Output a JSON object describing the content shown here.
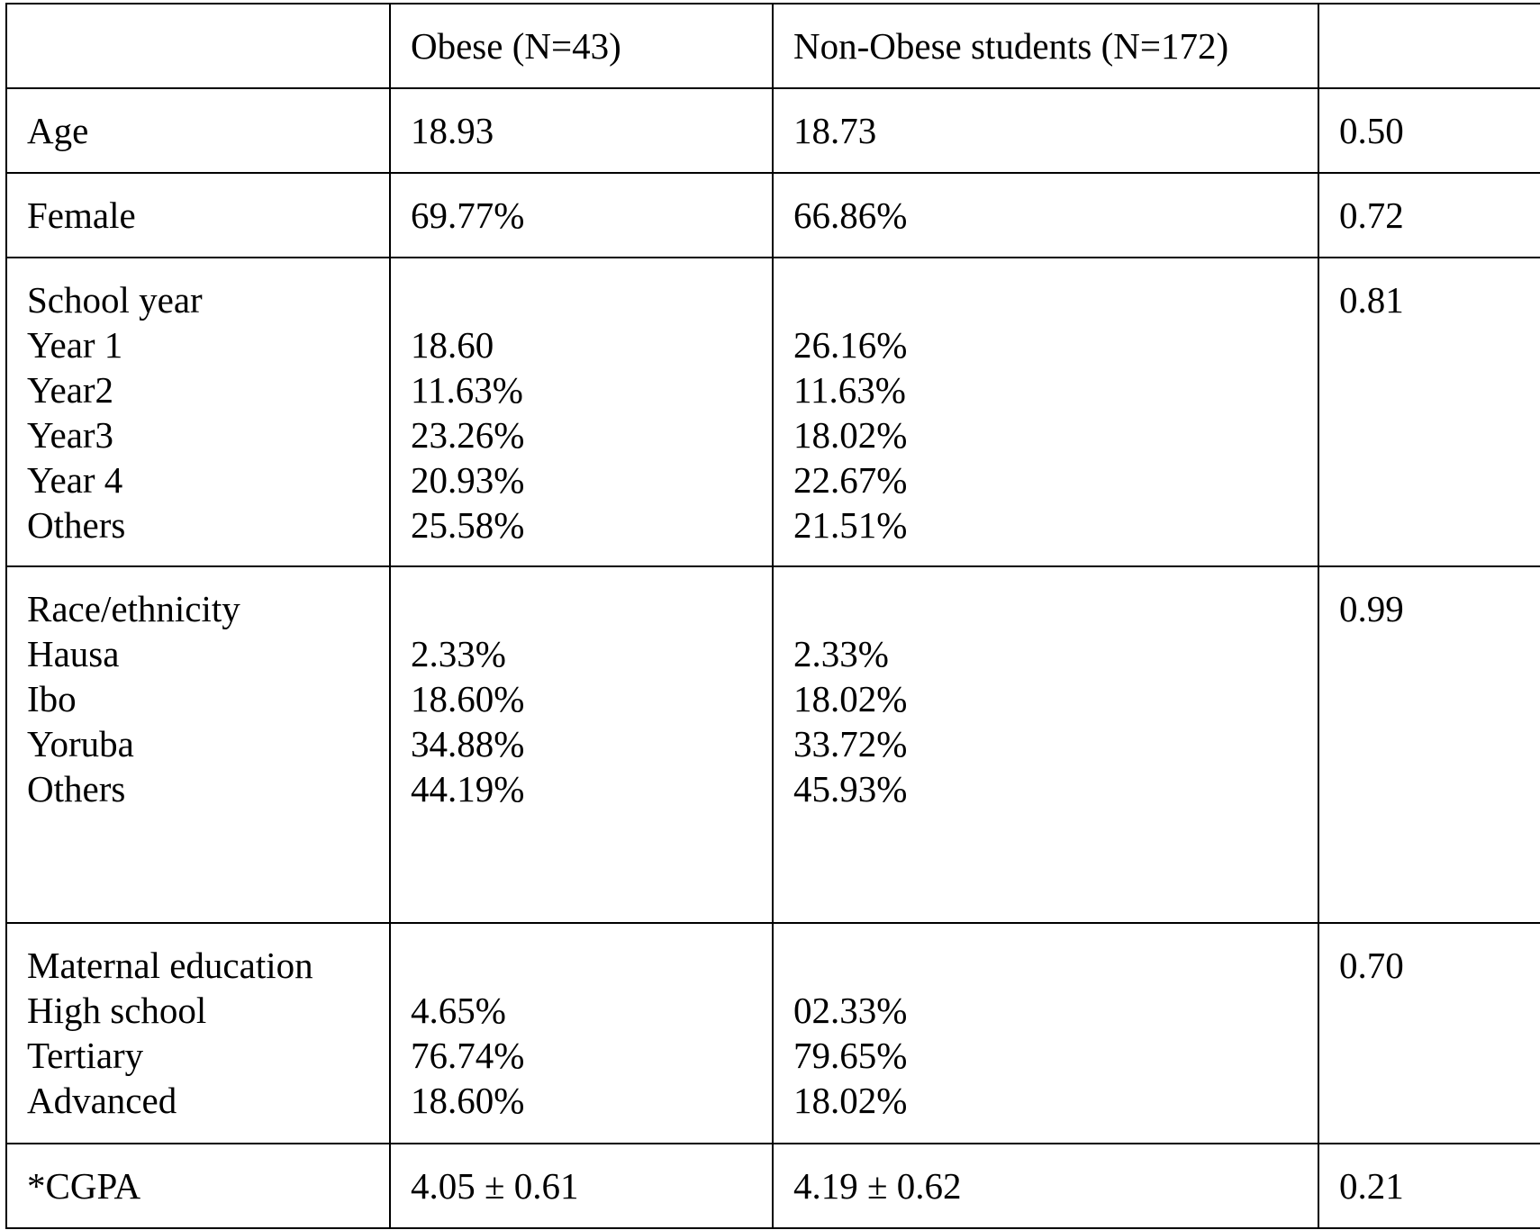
{
  "header": {
    "blank": "",
    "obese": "Obese (N=43)",
    "non_obese": "Non-Obese students (N=172)",
    "p_value": ""
  },
  "rows": {
    "age": {
      "label": "Age",
      "obese": "18.93",
      "non_obese": "18.73",
      "p": "0.50"
    },
    "female": {
      "label": "Female",
      "obese": "69.77%",
      "non_obese": "66.86%",
      "p": "0.72"
    },
    "school_year": {
      "label": "School year",
      "p": "0.81",
      "items": [
        {
          "label": "Year 1",
          "obese": "18.60",
          "non_obese": "26.16%"
        },
        {
          "label": "Year2",
          "obese": "11.63%",
          "non_obese": "11.63%"
        },
        {
          "label": "Year3",
          "obese": "23.26%",
          "non_obese": "18.02%"
        },
        {
          "label": "Year 4",
          "obese": "20.93%",
          "non_obese": "22.67%"
        },
        {
          "label": "Others",
          "obese": "25.58%",
          "non_obese": "21.51%"
        }
      ]
    },
    "race": {
      "label": "Race/ethnicity",
      "p": "0.99",
      "items": [
        {
          "label": "Hausa",
          "obese": "2.33%",
          "non_obese": "2.33%"
        },
        {
          "label": "Ibo",
          "obese": "18.60%",
          "non_obese": "18.02%"
        },
        {
          "label": "Yoruba",
          "obese": "34.88%",
          "non_obese": "33.72%"
        },
        {
          "label": "Others",
          "obese": "44.19%",
          "non_obese": "45.93%"
        }
      ]
    },
    "maternal": {
      "label": "Maternal education",
      "p": "0.70",
      "items": [
        {
          "label": "High school",
          "obese": "4.65%",
          "non_obese": "02.33%"
        },
        {
          "label": "Tertiary",
          "obese": "76.74%",
          "non_obese": "79.65%"
        },
        {
          "label": "Advanced",
          "obese": "18.60%",
          "non_obese": "18.02%"
        }
      ]
    },
    "cgpa": {
      "label": "*CGPA",
      "obese": "4.05 ± 0.61",
      "non_obese": "4.19 ± 0.62",
      "p": "0.21"
    }
  }
}
